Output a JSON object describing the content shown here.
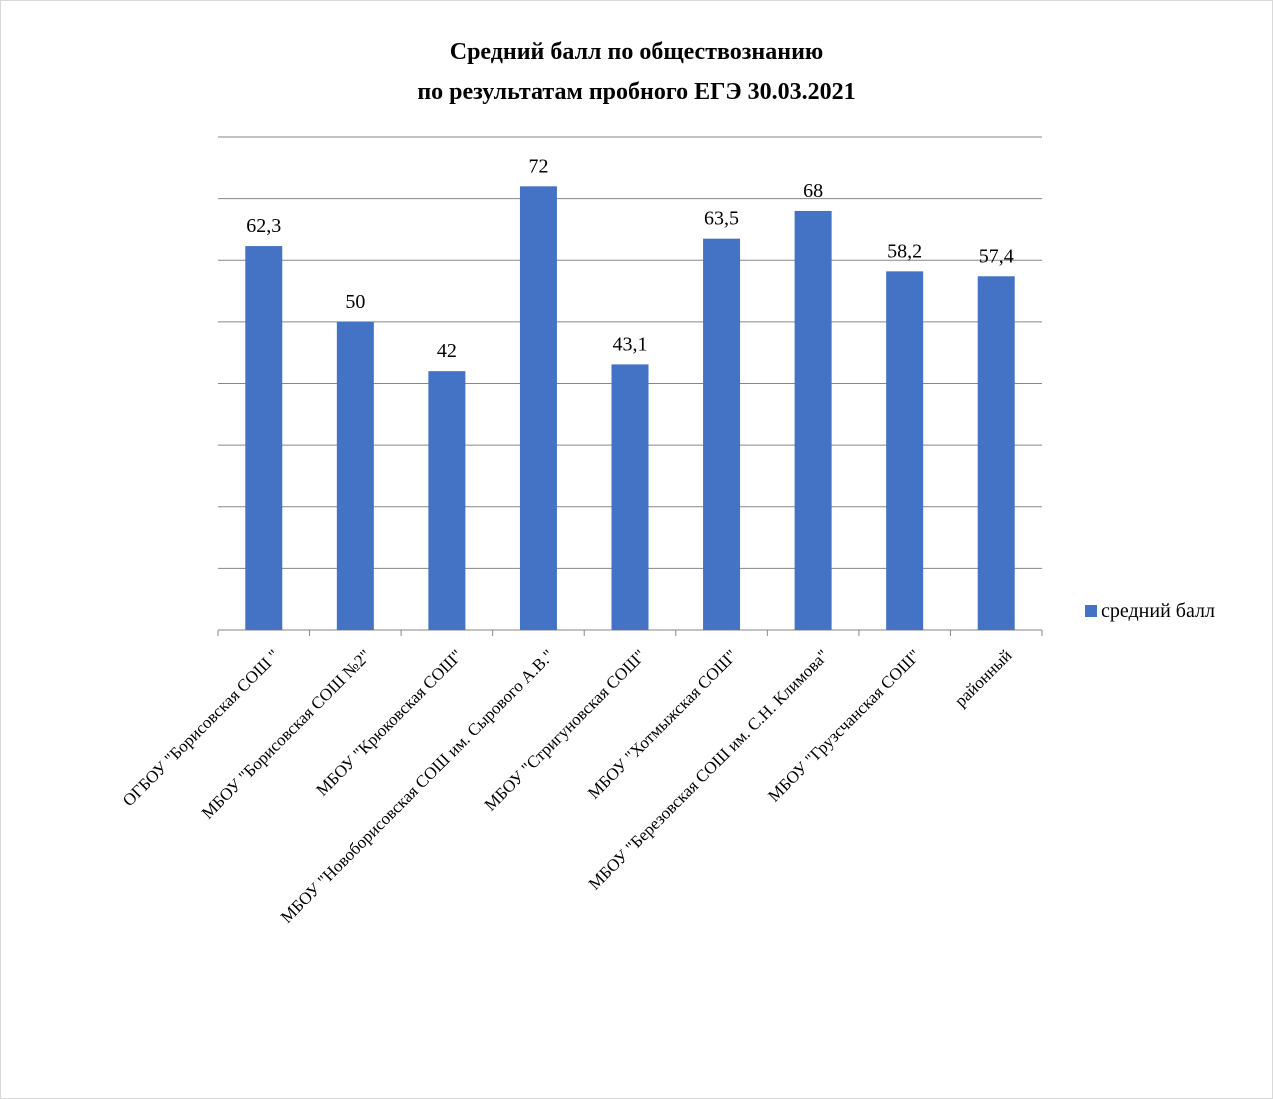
{
  "chart_data": {
    "type": "bar",
    "title": [
      "Средний балл по обществознанию",
      "по результатам пробного ЕГЭ 30.03.2021"
    ],
    "categories": [
      "ОГБОУ \"Борисовская СОШ \"",
      "МБОУ \"Борисовская СОШ №2\"",
      "МБОУ \"Крюковская СОШ\"",
      "МБОУ \"Новоборисовская СОШ им. Сырового А.В.\"",
      "МБОУ \"Стригуновская СОШ\"",
      "МБОУ \"Хотмыжская СОШ\"",
      "МБОУ \"Березовская СОШ им. С.Н. Климова\"",
      "МБОУ \"Грузсчанская СОШ\"",
      "районный"
    ],
    "series": [
      {
        "name": "средний балл",
        "values": [
          62.3,
          50,
          42,
          72,
          43.1,
          63.5,
          68,
          58.2,
          57.4
        ],
        "labels": [
          "62,3",
          "50",
          "42",
          "72",
          "43,1",
          "63,5",
          "68",
          "58,2",
          "57,4"
        ],
        "color": "#4472C4"
      }
    ],
    "ylim": [
      0,
      80
    ],
    "ytick_step": 10,
    "ytick_labels_visible": false,
    "grid": true,
    "legend": "right"
  }
}
